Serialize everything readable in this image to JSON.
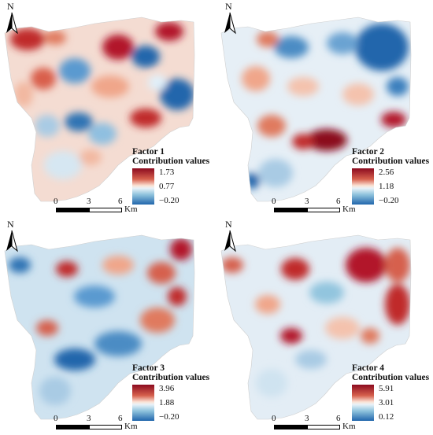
{
  "north_label": "N",
  "legend_subtitle": "Contribution values",
  "scale": {
    "ticks": [
      "0",
      "3",
      "6"
    ],
    "unit": "Km"
  },
  "colors": {
    "high": "#b2182b",
    "mid": "#f7f7f7",
    "low": "#2166ac",
    "background": "#ffffff"
  },
  "panels": [
    {
      "factor": "Factor 1",
      "legend_values": [
        "1.73",
        "0.77",
        "−0.20"
      ],
      "dominant": "mixed red hotspots north and east"
    },
    {
      "factor": "Factor 2",
      "legend_values": [
        "2.56",
        "1.18",
        "−0.20"
      ],
      "dominant": "blue north-east, red south-central"
    },
    {
      "factor": "Factor 3",
      "legend_values": [
        "3.96",
        "1.88",
        "−0.20"
      ],
      "dominant": "mostly blue, red spots north-east"
    },
    {
      "factor": "Factor 4",
      "legend_values": [
        "5.91",
        "3.01",
        "0.12"
      ],
      "dominant": "red north-east and east, blue elsewhere"
    }
  ]
}
